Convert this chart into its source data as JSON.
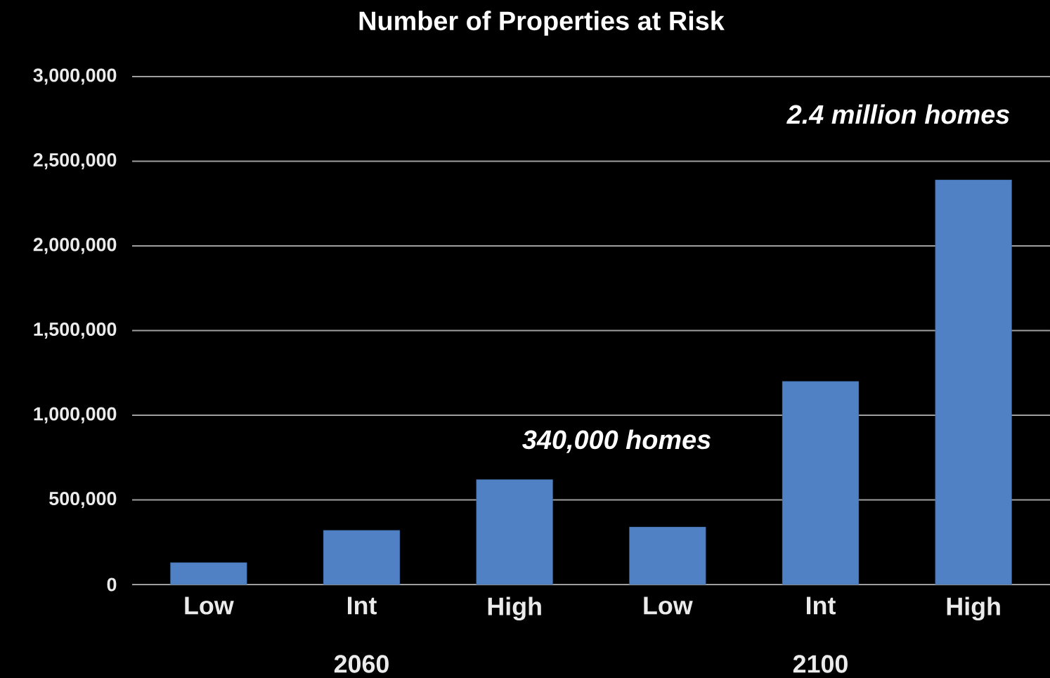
{
  "chart_data": {
    "type": "bar",
    "title": "Number of Properties at Risk",
    "categories": [
      "Low",
      "Int",
      "High",
      "Low",
      "Int",
      "High"
    ],
    "values": [
      130000,
      320000,
      620000,
      340000,
      1200000,
      2390000
    ],
    "color": "#4f81c4",
    "ylim": [
      0,
      3000000
    ],
    "yticks": [
      0,
      {
        "value": 500000,
        "label": "500,000"
      },
      {
        "value": 1000000,
        "label": "1,000,000"
      },
      {
        "value": 1500000,
        "label": "1,500,000"
      },
      {
        "value": 2000000,
        "label": "2,000,000"
      },
      {
        "value": 2500000,
        "label": "2,500,000"
      },
      {
        "value": 3000000,
        "label": "3,000,000"
      }
    ],
    "grid": "y",
    "annotations": [
      "340,000 homes",
      "2.4 million homes",
      "2060",
      "2100"
    ]
  }
}
